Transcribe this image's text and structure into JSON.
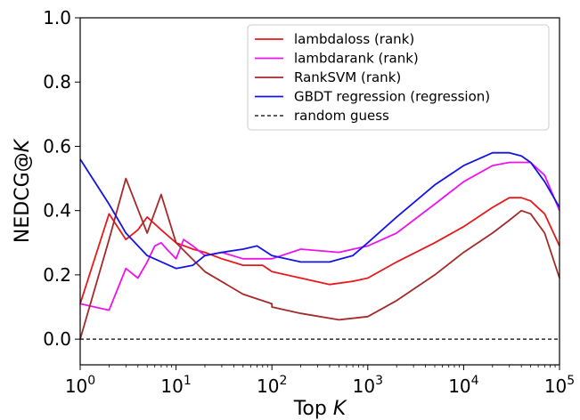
{
  "chart_data": {
    "type": "line",
    "xlabel": "Top K",
    "ylabel": "NEDCG@K",
    "xscale": "log",
    "xlim": [
      1,
      100000
    ],
    "ylim": [
      -0.08,
      1.0
    ],
    "xticks": [
      {
        "value": 1,
        "base": "10",
        "exp": "0"
      },
      {
        "value": 10,
        "base": "10",
        "exp": "1"
      },
      {
        "value": 100,
        "base": "10",
        "exp": "2"
      },
      {
        "value": 1000,
        "base": "10",
        "exp": "3"
      },
      {
        "value": 10000,
        "base": "10",
        "exp": "4"
      },
      {
        "value": 100000,
        "base": "10",
        "exp": "5"
      }
    ],
    "yticks": [
      {
        "value": 0.0,
        "label": "0.0"
      },
      {
        "value": 0.2,
        "label": "0.2"
      },
      {
        "value": 0.4,
        "label": "0.4"
      },
      {
        "value": 0.6,
        "label": "0.6"
      },
      {
        "value": 0.8,
        "label": "0.8"
      },
      {
        "value": 1.0,
        "label": "1.0"
      }
    ],
    "grid": false,
    "legend_position": "top-right",
    "series": [
      {
        "name": "lambdaloss (rank)",
        "color": "#e8191c",
        "dash": "",
        "x": [
          1,
          2,
          3,
          4,
          5,
          7,
          10,
          15,
          20,
          30,
          50,
          80,
          100,
          200,
          400,
          700,
          1000,
          2000,
          5000,
          10000,
          20000,
          30000,
          40000,
          50000,
          70000,
          100000
        ],
        "y": [
          0.11,
          0.39,
          0.31,
          0.34,
          0.38,
          0.34,
          0.3,
          0.28,
          0.27,
          0.25,
          0.23,
          0.23,
          0.21,
          0.19,
          0.17,
          0.18,
          0.19,
          0.24,
          0.3,
          0.35,
          0.41,
          0.44,
          0.44,
          0.43,
          0.39,
          0.29
        ]
      },
      {
        "name": "lambdarank (rank)",
        "color": "#ee12ee",
        "dash": "",
        "x": [
          1,
          2,
          3,
          4,
          5,
          6,
          7,
          8,
          10,
          12,
          15,
          20,
          30,
          50,
          100,
          200,
          500,
          1000,
          2000,
          5000,
          10000,
          20000,
          30000,
          50000,
          70000,
          100000
        ],
        "y": [
          0.11,
          0.09,
          0.22,
          0.19,
          0.24,
          0.29,
          0.3,
          0.28,
          0.25,
          0.31,
          0.29,
          0.26,
          0.27,
          0.25,
          0.25,
          0.28,
          0.27,
          0.29,
          0.33,
          0.42,
          0.49,
          0.54,
          0.55,
          0.55,
          0.51,
          0.4
        ]
      },
      {
        "name": "RankSVM (rank)",
        "color": "#a52a2a",
        "dash": "",
        "x": [
          1,
          2,
          3,
          5,
          7,
          10,
          20,
          50,
          100,
          100,
          200,
          500,
          1000,
          2000,
          5000,
          10000,
          20000,
          30000,
          40000,
          50000,
          70000,
          100000
        ],
        "y": [
          0.0,
          0.31,
          0.5,
          0.33,
          0.45,
          0.3,
          0.21,
          0.14,
          0.11,
          0.1,
          0.08,
          0.06,
          0.07,
          0.12,
          0.2,
          0.27,
          0.33,
          0.37,
          0.4,
          0.39,
          0.33,
          0.19
        ]
      },
      {
        "name": "GBDT regression (regression)",
        "color": "#1414e6",
        "dash": "",
        "x": [
          1,
          2,
          3,
          5,
          10,
          15,
          20,
          30,
          50,
          70,
          100,
          200,
          400,
          700,
          1000,
          2000,
          5000,
          10000,
          20000,
          30000,
          40000,
          50000,
          70000,
          100000
        ],
        "y": [
          0.56,
          0.42,
          0.33,
          0.26,
          0.22,
          0.23,
          0.26,
          0.27,
          0.28,
          0.29,
          0.26,
          0.24,
          0.24,
          0.26,
          0.3,
          0.38,
          0.48,
          0.54,
          0.58,
          0.58,
          0.57,
          0.55,
          0.49,
          0.41
        ]
      },
      {
        "name": "random guess",
        "color": "#000000",
        "dash": "4,3",
        "x": [
          1,
          100000
        ],
        "y": [
          0.0,
          0.0
        ]
      }
    ]
  }
}
